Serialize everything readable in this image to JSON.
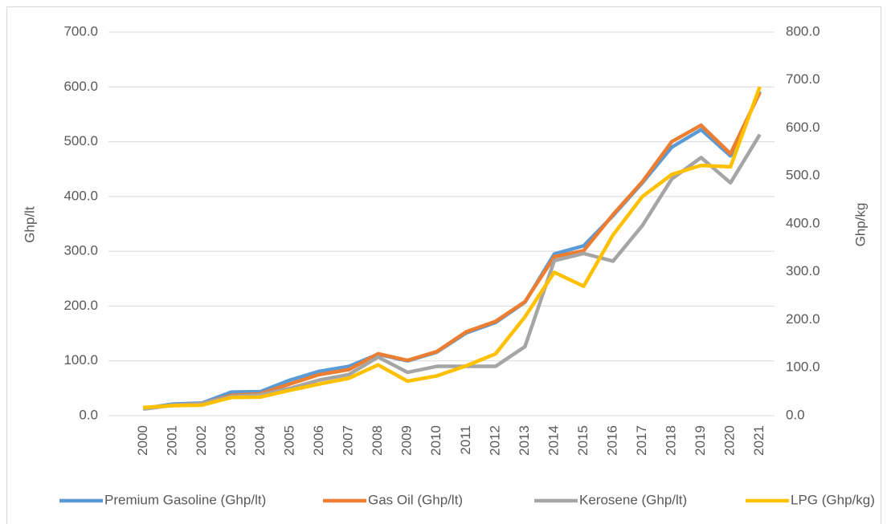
{
  "chart_data": {
    "type": "line",
    "categories": [
      "2000",
      "2001",
      "2002",
      "2003",
      "2004",
      "2005",
      "2006",
      "2007",
      "2008",
      "2009",
      "2010",
      "2011",
      "2012",
      "2013",
      "2014",
      "2015",
      "2016",
      "2017",
      "2018",
      "2019",
      "2020",
      "2021"
    ],
    "series": [
      {
        "name": "Premium Gasoline (Ghp/lt)",
        "color": "#5b9bd5",
        "values": [
          13,
          21,
          23,
          43,
          44,
          65,
          81,
          90,
          112,
          100,
          116,
          151,
          170,
          207,
          295,
          310,
          365,
          425,
          490,
          522,
          474,
          592
        ]
      },
      {
        "name": "Gas Oil (Ghp/lt)",
        "color": "#ed7d31",
        "values": [
          13,
          19,
          22,
          37,
          40,
          58,
          75,
          84,
          113,
          101,
          117,
          153,
          172,
          208,
          290,
          301,
          367,
          427,
          500,
          530,
          478,
          590
        ]
      },
      {
        "name": "Kerosene (Ghp/lt)",
        "color": "#a5a5a5",
        "values": [
          12,
          19,
          22,
          35,
          38,
          50,
          65,
          75,
          107,
          79,
          90,
          90,
          90,
          126,
          283,
          296,
          282,
          347,
          432,
          471,
          425,
          513
        ]
      },
      {
        "name": "LPG (Ghp/kg)",
        "color": "#ffc000",
        "axis": "y2",
        "values": [
          17,
          21,
          22,
          38,
          39,
          53,
          66,
          78,
          106,
          72,
          83,
          104,
          129,
          206,
          299,
          270,
          377,
          457,
          503,
          522,
          519,
          686
        ]
      }
    ],
    "ylabel": "Ghp/lt",
    "y2label": "Ghp/kg",
    "ylim": [
      0,
      700
    ],
    "yticks": [
      {
        "value": 0,
        "label": "0.0"
      },
      {
        "value": 100,
        "label": "100.0"
      },
      {
        "value": 200,
        "label": "200.0"
      },
      {
        "value": 300,
        "label": "300.0"
      },
      {
        "value": 400,
        "label": "400.0"
      },
      {
        "value": 500,
        "label": "500.0"
      },
      {
        "value": 600,
        "label": "600.0"
      },
      {
        "value": 700,
        "label": "700.0"
      }
    ],
    "y2lim": [
      0,
      800
    ],
    "y2ticks": [
      {
        "value": 0,
        "label": "0.0"
      },
      {
        "value": 100,
        "label": "100.0"
      },
      {
        "value": 200,
        "label": "200.0"
      },
      {
        "value": 300,
        "label": "300.0"
      },
      {
        "value": 400,
        "label": "400.0"
      },
      {
        "value": 500,
        "label": "500.0"
      },
      {
        "value": 600,
        "label": "600.0"
      },
      {
        "value": 700,
        "label": "700.0"
      },
      {
        "value": 800,
        "label": "800.0"
      }
    ],
    "grid": true,
    "legend": "bottom"
  }
}
